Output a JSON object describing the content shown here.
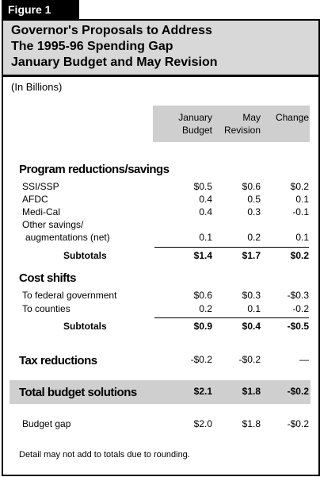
{
  "figure_label": "Figure 1",
  "title": [
    "Governor's Proposals to Address",
    "The 1995-96 Spending Gap",
    "January Budget and May Revision"
  ],
  "units": "(In Billions)",
  "columns": [
    "January Budget",
    "May Revision",
    "Change"
  ],
  "sections": [
    {
      "heading": "Program reductions/savings",
      "rows": [
        {
          "label": "SSI/SSP",
          "values": [
            "$0.5",
            "$0.6",
            "$0.2"
          ]
        },
        {
          "label": "AFDC",
          "values": [
            "0.4",
            "0.5",
            "0.1"
          ]
        },
        {
          "label": "Medi-Cal",
          "values": [
            "0.4",
            "0.3",
            "-0.1"
          ]
        },
        {
          "label": [
            "Other savings/",
            "augmentations (net)"
          ],
          "values": [
            "0.1",
            "0.2",
            "0.1"
          ]
        }
      ],
      "subtotal": {
        "label": "Subtotals",
        "values": [
          "$1.4",
          "$1.7",
          "$0.2"
        ]
      }
    },
    {
      "heading": "Cost shifts",
      "rows": [
        {
          "label": "To federal government",
          "values": [
            "$0.6",
            "$0.3",
            "-$0.3"
          ]
        },
        {
          "label": "To counties",
          "values": [
            "0.2",
            "0.1",
            "-0.2"
          ]
        }
      ],
      "subtotal": {
        "label": "Subtotals",
        "values": [
          "$0.9",
          "$0.4",
          "-$0.5"
        ]
      }
    }
  ],
  "tax": {
    "label": "Tax reductions",
    "values": [
      "-$0.2",
      "-$0.2",
      "—"
    ]
  },
  "total": {
    "label": "Total budget solutions",
    "values": [
      "$2.1",
      "$1.8",
      "-$0.2"
    ]
  },
  "gap": {
    "label": "Budget gap",
    "values": [
      "$2.0",
      "$1.8",
      "-$0.2"
    ]
  },
  "note": "Detail may not add to totals due to rounding."
}
